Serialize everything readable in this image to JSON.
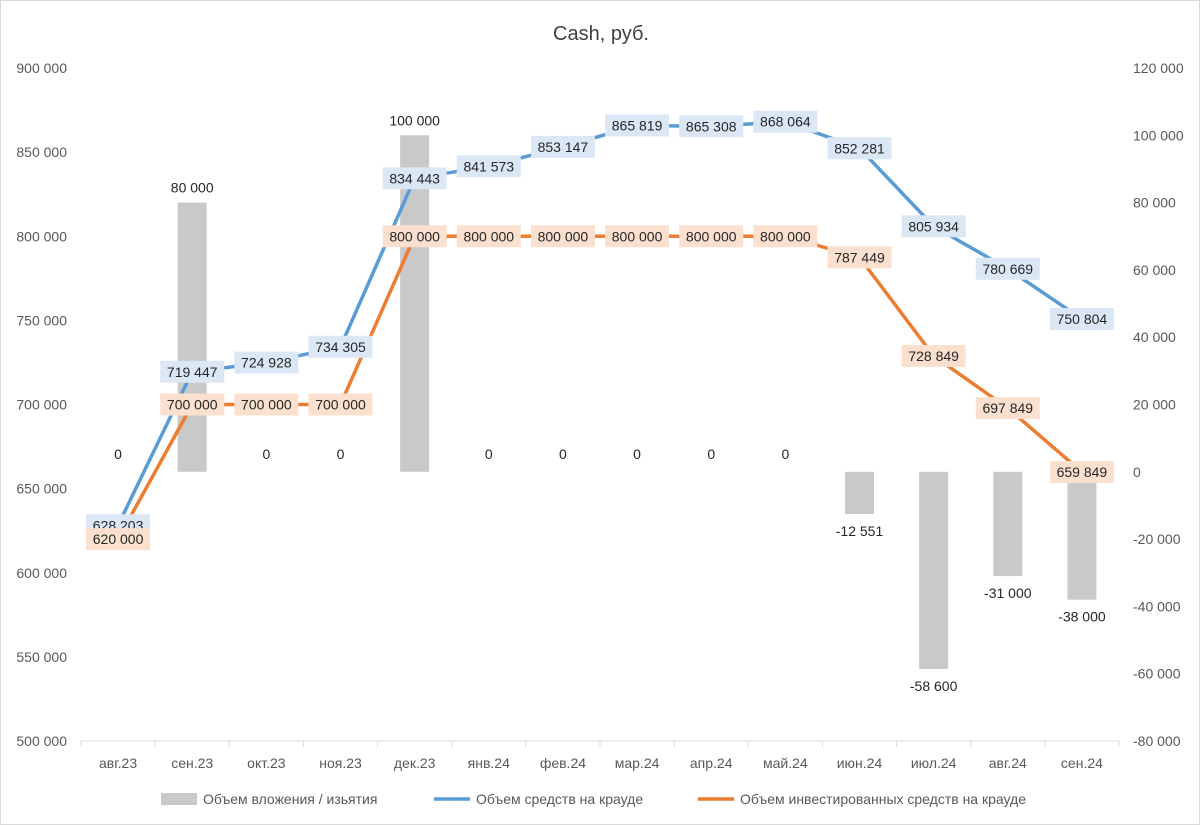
{
  "chart_data": {
    "type": "combo",
    "title": "Cash, руб.",
    "categories": [
      "авг.23",
      "сен.23",
      "окт.23",
      "ноя.23",
      "дек.23",
      "янв.24",
      "фев.24",
      "мар.24",
      "апр.24",
      "май.24",
      "июн.24",
      "июл.24",
      "авг.24",
      "сен.24"
    ],
    "left_axis": {
      "min": 500000,
      "max": 900000,
      "step": 50000,
      "tick_labels": [
        "500 000",
        "550 000",
        "600 000",
        "650 000",
        "700 000",
        "750 000",
        "800 000",
        "850 000",
        "900 000"
      ]
    },
    "right_axis": {
      "min": -80000,
      "max": 120000,
      "step": 20000,
      "tick_labels": [
        "-80 000",
        "-60 000",
        "-40 000",
        "-20 000",
        "0",
        "20 000",
        "40 000",
        "60 000",
        "80 000",
        "100 000",
        "120 000"
      ]
    },
    "series": [
      {
        "name": "Объем вложения / изьятия",
        "kind": "bar",
        "axis": "right",
        "color": "#c9c9c9",
        "values": [
          0,
          80000,
          0,
          0,
          100000,
          0,
          0,
          0,
          0,
          0,
          -12551,
          -58600,
          -31000,
          -38000
        ],
        "labels": [
          "0",
          "80 000",
          "0",
          "0",
          "100 000",
          "0",
          "0",
          "0",
          "0",
          "0",
          "-12 551",
          "-58 600",
          "-31 000",
          "-38 000"
        ]
      },
      {
        "name": "Объем средств на крауде",
        "kind": "line",
        "axis": "left",
        "color": "#5b9bd5",
        "label_bg": "#dbe7f5",
        "values": [
          628203,
          719447,
          724928,
          734305,
          834443,
          841573,
          853147,
          865819,
          865308,
          868064,
          852281,
          805934,
          780669,
          750804
        ],
        "labels": [
          "628 203",
          "719 447",
          "724 928",
          "734 305",
          "834 443",
          "841 573",
          "853 147",
          "865 819",
          "865 308",
          "868 064",
          "852 281",
          "805 934",
          "780 669",
          "750 804"
        ]
      },
      {
        "name": "Объем инвестированных средств на крауде",
        "kind": "line",
        "axis": "left",
        "color": "#ed7d31",
        "label_bg": "#fbe0cf",
        "values": [
          620000,
          700000,
          700000,
          700000,
          800000,
          800000,
          800000,
          800000,
          800000,
          800000,
          787449,
          728849,
          697849,
          659849
        ],
        "labels": [
          "620 000",
          "700 000",
          "700 000",
          "700 000",
          "800 000",
          "800 000",
          "800 000",
          "800 000",
          "800 000",
          "800 000",
          "787 449",
          "728 849",
          "697 849",
          "659 849"
        ]
      }
    ],
    "legend_position": "bottom",
    "grid": false
  }
}
